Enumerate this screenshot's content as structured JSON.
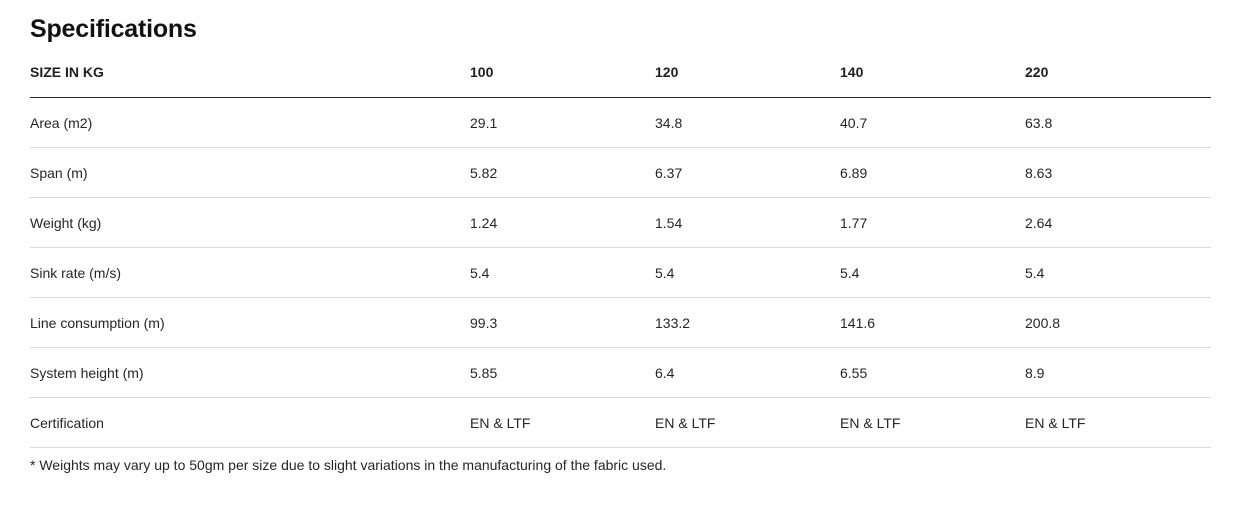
{
  "page": {
    "title": "Specifications",
    "footnote": "* Weights may vary up to 50gm per size due to slight variations in the manufacturing of the fabric used."
  },
  "table": {
    "header_label": "SIZE IN KG",
    "columns": [
      "100",
      "120",
      "140",
      "220"
    ],
    "rows": [
      {
        "label": "Area (m2)",
        "values": [
          "29.1",
          "34.8",
          "40.7",
          "63.8"
        ]
      },
      {
        "label": "Span (m)",
        "values": [
          "5.82",
          "6.37",
          "6.89",
          "8.63"
        ]
      },
      {
        "label": "Weight (kg)",
        "values": [
          "1.24",
          "1.54",
          "1.77",
          "2.64"
        ]
      },
      {
        "label": "Sink rate (m/s)",
        "values": [
          "5.4",
          "5.4",
          "5.4",
          "5.4"
        ]
      },
      {
        "label": "Line consumption (m)",
        "values": [
          "99.3",
          "133.2",
          "141.6",
          "200.8"
        ]
      },
      {
        "label": "System height (m)",
        "values": [
          "5.85",
          "6.4",
          "6.55",
          "8.9"
        ]
      },
      {
        "label": "Certification",
        "values": [
          "EN & LTF",
          "EN & LTF",
          "EN & LTF",
          "EN & LTF"
        ]
      }
    ]
  },
  "colors": {
    "text": "#262626",
    "header_border": "#2b2b2b",
    "row_border": "#d9d9d9"
  }
}
